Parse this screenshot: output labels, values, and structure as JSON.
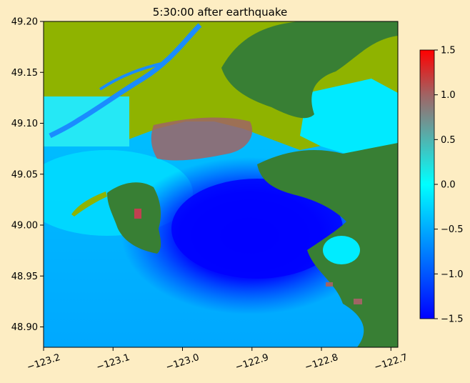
{
  "chart_data": {
    "type": "heatmap",
    "title": "5:30:00 after earthquake",
    "xlabel": "",
    "ylabel": "",
    "xlim": [
      -123.2,
      -122.69
    ],
    "ylim": [
      48.88,
      49.2
    ],
    "x_ticks": [
      -123.2,
      -123.1,
      -123.0,
      -122.9,
      -122.8,
      -122.7
    ],
    "x_tick_labels": [
      "−123.2",
      "−123.1",
      "−123.0",
      "−122.9",
      "−122.8",
      "−122.7"
    ],
    "y_ticks": [
      48.9,
      48.95,
      49.0,
      49.05,
      49.1,
      49.15,
      49.2
    ],
    "y_tick_labels": [
      "48.90",
      "48.95",
      "49.00",
      "49.05",
      "49.10",
      "49.15",
      "49.20"
    ],
    "colorbar": {
      "range": [
        -1.5,
        1.5
      ],
      "ticks": [
        -1.5,
        -1.0,
        -0.5,
        0.0,
        0.5,
        1.0,
        1.5
      ],
      "tick_labels": [
        "−1.5",
        "−1.0",
        "−0.5",
        "0.0",
        "0.5",
        "1.0",
        "1.5"
      ],
      "colormap": [
        {
          "value": -1.5,
          "color": "#0000ff"
        },
        {
          "value": -0.75,
          "color": "#0080ff"
        },
        {
          "value": 0.0,
          "color": "#00ffff"
        },
        {
          "value": 0.5,
          "color": "#50b4b0"
        },
        {
          "value": 1.0,
          "color": "#a06464"
        },
        {
          "value": 1.5,
          "color": "#ff0000"
        }
      ]
    },
    "land_colors": {
      "lowland": "#8fb300",
      "upland": "#387f34"
    },
    "grid": false,
    "legend": "none"
  }
}
